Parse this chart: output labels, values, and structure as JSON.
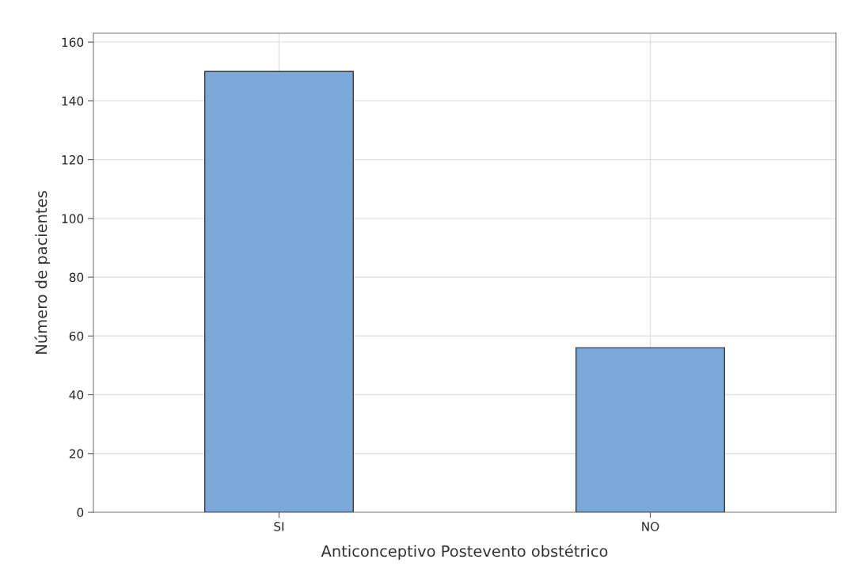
{
  "chart_data": {
    "type": "bar",
    "xlabel": "Anticonceptivo Postevento obstétrico",
    "ylabel": "Número de pacientes",
    "categories": [
      "SI",
      "NO"
    ],
    "values": [
      150,
      56
    ],
    "color": "#7ba7d9",
    "ylim": [
      0,
      163
    ],
    "yticks": [
      0,
      20,
      40,
      60,
      80,
      100,
      120,
      140,
      160
    ],
    "grid": true
  }
}
